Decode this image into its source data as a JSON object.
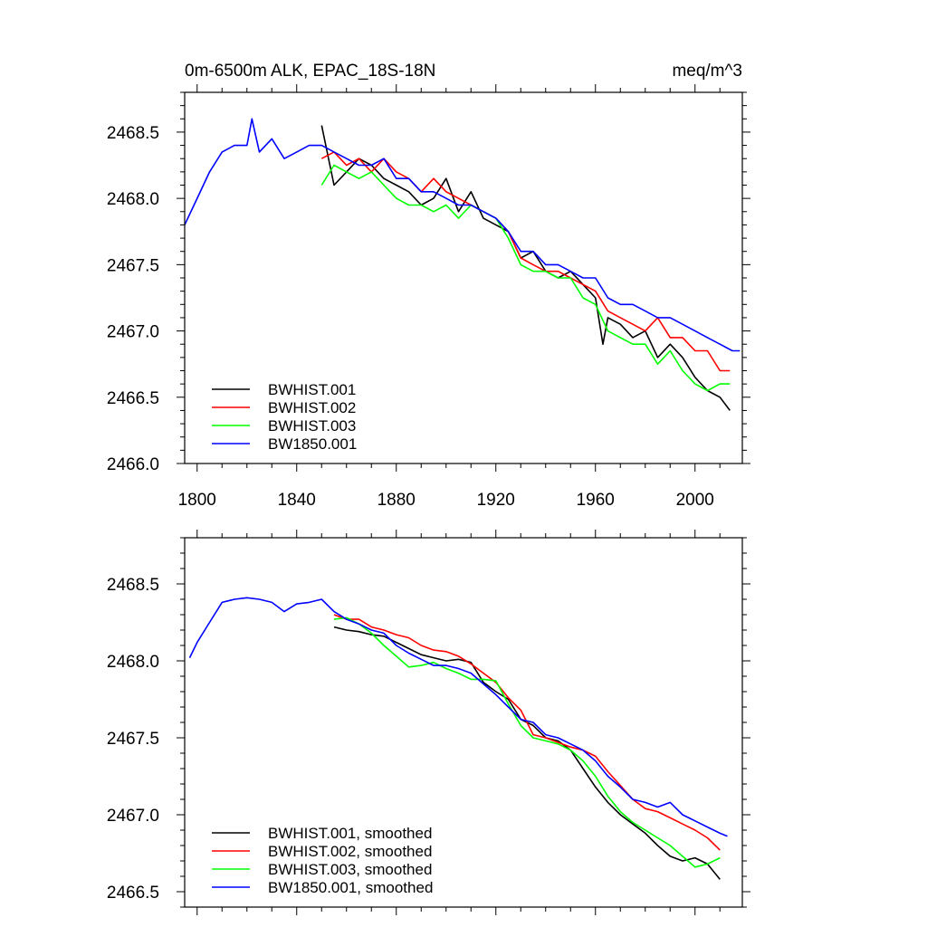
{
  "figure": {
    "title": "0m-6500m ALK, EPAC_18S-18N",
    "units": "meq/m^3"
  },
  "chart_data": [
    {
      "type": "line",
      "title": "0m-6500m ALK, EPAC_18S-18N",
      "units": "meq/m^3",
      "xlim": [
        1795,
        2019
      ],
      "ylim": [
        2466.0,
        2468.8
      ],
      "x_ticks": [
        1800,
        1840,
        1880,
        1920,
        1960,
        2000
      ],
      "x_tick_labels": [
        "1800",
        "1840",
        "1880",
        "1920",
        "1960",
        "2000"
      ],
      "y_ticks": [
        2466.0,
        2466.5,
        2467.0,
        2467.5,
        2468.0,
        2468.5
      ],
      "y_tick_labels": [
        "2466.0",
        "2466.5",
        "2467.0",
        "2467.5",
        "2468.0",
        "2468.5"
      ],
      "legend_position": "bottom-left",
      "series": [
        {
          "name": "BWHIST.001",
          "color": "#000000",
          "x": [
            1850,
            1855,
            1860,
            1865,
            1870,
            1875,
            1880,
            1885,
            1890,
            1895,
            1900,
            1905,
            1910,
            1915,
            1920,
            1925,
            1930,
            1935,
            1940,
            1945,
            1950,
            1955,
            1960,
            1963,
            1965,
            1970,
            1975,
            1980,
            1985,
            1990,
            1995,
            2000,
            2005,
            2010,
            2014
          ],
          "y": [
            2468.55,
            2468.1,
            2468.2,
            2468.3,
            2468.25,
            2468.15,
            2468.1,
            2468.05,
            2467.95,
            2468.0,
            2468.15,
            2467.9,
            2468.05,
            2467.85,
            2467.8,
            2467.75,
            2467.55,
            2467.6,
            2467.45,
            2467.4,
            2467.45,
            2467.35,
            2467.25,
            2466.9,
            2467.1,
            2467.05,
            2466.95,
            2467.0,
            2466.8,
            2466.9,
            2466.8,
            2466.65,
            2466.55,
            2466.5,
            2466.4
          ]
        },
        {
          "name": "BWHIST.002",
          "color": "#ff0000",
          "x": [
            1850,
            1855,
            1860,
            1865,
            1870,
            1875,
            1880,
            1885,
            1890,
            1895,
            1900,
            1905,
            1910,
            1915,
            1920,
            1925,
            1930,
            1935,
            1940,
            1945,
            1950,
            1955,
            1960,
            1965,
            1970,
            1975,
            1980,
            1985,
            1990,
            1995,
            2000,
            2005,
            2010,
            2014
          ],
          "y": [
            2468.3,
            2468.35,
            2468.25,
            2468.3,
            2468.2,
            2468.3,
            2468.2,
            2468.15,
            2468.05,
            2468.15,
            2468.05,
            2468.0,
            2467.95,
            2467.9,
            2467.85,
            2467.75,
            2467.55,
            2467.5,
            2467.45,
            2467.45,
            2467.4,
            2467.35,
            2467.3,
            2467.15,
            2467.1,
            2467.05,
            2467.0,
            2467.1,
            2466.95,
            2466.95,
            2466.85,
            2466.85,
            2466.7,
            2466.7
          ]
        },
        {
          "name": "BWHIST.003",
          "color": "#00ff00",
          "x": [
            1850,
            1855,
            1860,
            1865,
            1870,
            1875,
            1880,
            1885,
            1890,
            1895,
            1900,
            1905,
            1910,
            1915,
            1920,
            1925,
            1930,
            1935,
            1940,
            1945,
            1950,
            1955,
            1960,
            1965,
            1970,
            1975,
            1980,
            1985,
            1990,
            1995,
            2000,
            2005,
            2010,
            2014
          ],
          "y": [
            2468.1,
            2468.25,
            2468.2,
            2468.15,
            2468.2,
            2468.1,
            2468.0,
            2467.95,
            2467.95,
            2467.9,
            2467.95,
            2467.85,
            2467.95,
            2467.9,
            2467.85,
            2467.7,
            2467.5,
            2467.45,
            2467.45,
            2467.4,
            2467.4,
            2467.25,
            2467.2,
            2467.0,
            2466.95,
            2466.9,
            2466.9,
            2466.75,
            2466.85,
            2466.7,
            2466.6,
            2466.55,
            2466.6,
            2466.6
          ]
        },
        {
          "name": "BW1850.001",
          "color": "#0000ff",
          "x": [
            1795,
            1800,
            1805,
            1810,
            1815,
            1820,
            1822,
            1825,
            1830,
            1835,
            1840,
            1845,
            1850,
            1855,
            1860,
            1865,
            1870,
            1875,
            1880,
            1885,
            1890,
            1895,
            1900,
            1905,
            1910,
            1915,
            1920,
            1925,
            1930,
            1935,
            1940,
            1945,
            1950,
            1955,
            1960,
            1965,
            1970,
            1975,
            1980,
            1985,
            1990,
            1995,
            2000,
            2005,
            2010,
            2015,
            2018
          ],
          "y": [
            2467.8,
            2468.0,
            2468.2,
            2468.35,
            2468.4,
            2468.4,
            2468.6,
            2468.35,
            2468.45,
            2468.3,
            2468.35,
            2468.4,
            2468.4,
            2468.35,
            2468.3,
            2468.25,
            2468.25,
            2468.3,
            2468.15,
            2468.15,
            2468.05,
            2468.05,
            2468.0,
            2467.95,
            2467.95,
            2467.9,
            2467.85,
            2467.75,
            2467.6,
            2467.6,
            2467.5,
            2467.5,
            2467.45,
            2467.4,
            2467.4,
            2467.25,
            2467.2,
            2467.2,
            2467.15,
            2467.1,
            2467.1,
            2467.05,
            2467.0,
            2466.95,
            2466.9,
            2466.85,
            2466.85
          ]
        }
      ]
    },
    {
      "type": "line",
      "xlim": [
        1795,
        2019
      ],
      "ylim": [
        2466.4,
        2468.8
      ],
      "x_ticks": [
        1800,
        1840,
        1880,
        1920,
        1960,
        2000
      ],
      "y_ticks": [
        2466.5,
        2467.0,
        2467.5,
        2468.0,
        2468.5
      ],
      "y_tick_labels": [
        "2466.5",
        "2467.0",
        "2467.5",
        "2468.0",
        "2468.5"
      ],
      "legend_position": "bottom-left",
      "series": [
        {
          "name": "BWHIST.001, smoothed",
          "color": "#000000",
          "x": [
            1855,
            1860,
            1865,
            1870,
            1875,
            1880,
            1885,
            1890,
            1895,
            1900,
            1905,
            1910,
            1915,
            1920,
            1925,
            1930,
            1935,
            1940,
            1945,
            1950,
            1955,
            1960,
            1965,
            1970,
            1975,
            1980,
            1985,
            1990,
            1995,
            2000,
            2005,
            2010
          ],
          "y": [
            2468.22,
            2468.2,
            2468.19,
            2468.17,
            2468.16,
            2468.12,
            2468.08,
            2468.04,
            2468.02,
            2468.0,
            2468.01,
            2467.99,
            2467.86,
            2467.8,
            2467.75,
            2467.62,
            2467.58,
            2467.5,
            2467.48,
            2467.42,
            2467.3,
            2467.18,
            2467.08,
            2467.0,
            2466.94,
            2466.88,
            2466.8,
            2466.73,
            2466.7,
            2466.72,
            2466.68,
            2466.58
          ]
        },
        {
          "name": "BWHIST.002, smoothed",
          "color": "#ff0000",
          "x": [
            1855,
            1860,
            1865,
            1870,
            1875,
            1880,
            1885,
            1890,
            1895,
            1900,
            1905,
            1910,
            1915,
            1920,
            1925,
            1930,
            1935,
            1940,
            1945,
            1950,
            1955,
            1960,
            1965,
            1970,
            1975,
            1980,
            1985,
            1990,
            1995,
            2000,
            2005,
            2010
          ],
          "y": [
            2468.3,
            2468.27,
            2468.27,
            2468.22,
            2468.2,
            2468.17,
            2468.15,
            2468.1,
            2468.07,
            2468.06,
            2468.03,
            2467.98,
            2467.92,
            2467.86,
            2467.76,
            2467.68,
            2467.52,
            2467.5,
            2467.47,
            2467.44,
            2467.42,
            2467.38,
            2467.28,
            2467.19,
            2467.1,
            2467.04,
            2467.02,
            2466.98,
            2466.94,
            2466.9,
            2466.85,
            2466.77
          ]
        },
        {
          "name": "BWHIST.003, smoothed",
          "color": "#00ff00",
          "x": [
            1855,
            1860,
            1865,
            1870,
            1875,
            1880,
            1885,
            1890,
            1895,
            1900,
            1905,
            1910,
            1915,
            1920,
            1925,
            1930,
            1935,
            1940,
            1945,
            1950,
            1955,
            1960,
            1965,
            1970,
            1975,
            1980,
            1985,
            1990,
            1995,
            2000,
            2005,
            2010
          ],
          "y": [
            2468.27,
            2468.28,
            2468.24,
            2468.18,
            2468.1,
            2468.03,
            2467.96,
            2467.97,
            2467.99,
            2467.95,
            2467.92,
            2467.88,
            2467.88,
            2467.87,
            2467.72,
            2467.58,
            2467.5,
            2467.48,
            2467.46,
            2467.42,
            2467.35,
            2467.25,
            2467.12,
            2467.02,
            2466.95,
            2466.9,
            2466.85,
            2466.8,
            2466.73,
            2466.66,
            2466.68,
            2466.72
          ]
        },
        {
          "name": "BW1850.001, smoothed",
          "color": "#0000ff",
          "x": [
            1797,
            1800,
            1805,
            1810,
            1815,
            1820,
            1825,
            1830,
            1835,
            1840,
            1845,
            1850,
            1855,
            1860,
            1865,
            1870,
            1875,
            1880,
            1885,
            1890,
            1895,
            1900,
            1905,
            1910,
            1915,
            1920,
            1925,
            1930,
            1935,
            1940,
            1945,
            1950,
            1955,
            1960,
            1965,
            1970,
            1975,
            1980,
            1985,
            1990,
            1995,
            2000,
            2005,
            2010,
            2013
          ],
          "y": [
            2468.02,
            2468.12,
            2468.25,
            2468.38,
            2468.4,
            2468.41,
            2468.4,
            2468.38,
            2468.32,
            2468.37,
            2468.38,
            2468.4,
            2468.32,
            2468.27,
            2468.24,
            2468.2,
            2468.18,
            2468.1,
            2468.05,
            2468.01,
            2467.97,
            2467.97,
            2467.95,
            2467.92,
            2467.85,
            2467.78,
            2467.7,
            2467.62,
            2467.6,
            2467.52,
            2467.5,
            2467.46,
            2467.42,
            2467.35,
            2467.25,
            2467.18,
            2467.1,
            2467.08,
            2467.05,
            2467.08,
            2467.0,
            2466.96,
            2466.92,
            2466.88,
            2466.86
          ]
        }
      ]
    }
  ]
}
